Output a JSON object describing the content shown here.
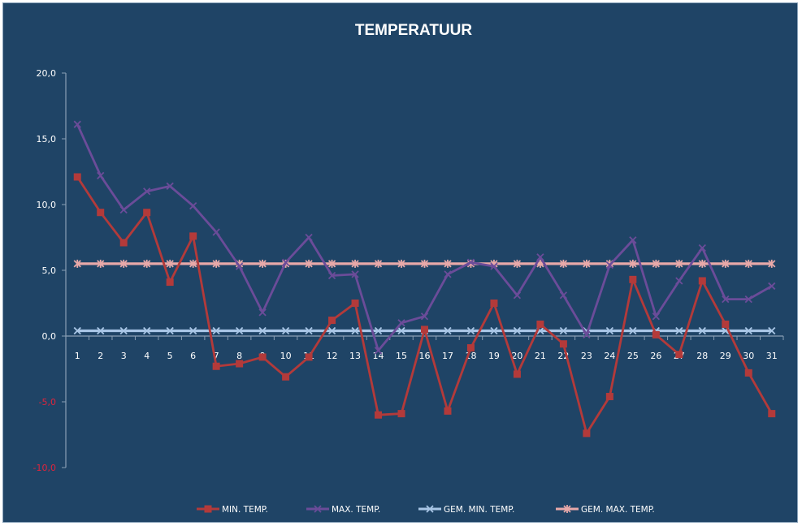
{
  "chart_data": {
    "type": "line",
    "title": "TEMPERATUUR",
    "xlabel": "",
    "ylabel": "",
    "ylim": [
      -10,
      20
    ],
    "y_ticks": [
      "20,0",
      "15,0",
      "10,0",
      "5,0",
      "0,0",
      "-5,0",
      "-10,0"
    ],
    "y_tick_values": [
      20,
      15,
      10,
      5,
      0,
      -5,
      -10
    ],
    "negative_tick_color": "#e0243c",
    "categories": [
      "1",
      "2",
      "3",
      "4",
      "5",
      "6",
      "7",
      "8",
      "9",
      "10",
      "11",
      "12",
      "13",
      "14",
      "15",
      "16",
      "17",
      "18",
      "19",
      "20",
      "21",
      "22",
      "23",
      "24",
      "25",
      "26",
      "27",
      "28",
      "29",
      "30",
      "31"
    ],
    "legend_position": "bottom",
    "grid": false,
    "background": "#1f4466",
    "series": [
      {
        "name": "MIN. TEMP.",
        "color": "#b33a3a",
        "marker": "square",
        "values": [
          12.1,
          9.4,
          7.1,
          9.4,
          4.1,
          7.6,
          -2.3,
          -2.1,
          -1.6,
          -3.1,
          -1.6,
          1.2,
          2.5,
          -6.0,
          -5.9,
          0.5,
          -5.7,
          -0.9,
          2.5,
          -2.9,
          0.9,
          -0.6,
          -7.4,
          -4.6,
          4.3,
          0.1,
          -1.4,
          4.2,
          0.9,
          -2.8,
          -5.9
        ]
      },
      {
        "name": "MAX. TEMP.",
        "color": "#6b4c99",
        "marker": "x",
        "values": [
          16.1,
          12.2,
          9.6,
          11.0,
          11.4,
          9.9,
          7.9,
          5.3,
          1.8,
          5.6,
          7.5,
          4.6,
          4.7,
          -1.1,
          1.0,
          1.5,
          4.7,
          5.6,
          5.3,
          3.1,
          6.0,
          3.1,
          0.1,
          5.4,
          7.3,
          1.5,
          4.2,
          6.7,
          2.8,
          2.8,
          3.8
        ]
      },
      {
        "name": "GEM. MIN. TEMP.",
        "color": "#a9c6e6",
        "marker": "x",
        "values": [
          0.4,
          0.4,
          0.4,
          0.4,
          0.4,
          0.4,
          0.4,
          0.4,
          0.4,
          0.4,
          0.4,
          0.4,
          0.4,
          0.4,
          0.4,
          0.4,
          0.4,
          0.4,
          0.4,
          0.4,
          0.4,
          0.4,
          0.4,
          0.4,
          0.4,
          0.4,
          0.4,
          0.4,
          0.4,
          0.4,
          0.4
        ]
      },
      {
        "name": "GEM. MAX. TEMP.",
        "color": "#e8a9a9",
        "marker": "star",
        "values": [
          5.5,
          5.5,
          5.5,
          5.5,
          5.5,
          5.5,
          5.5,
          5.5,
          5.5,
          5.5,
          5.5,
          5.5,
          5.5,
          5.5,
          5.5,
          5.5,
          5.5,
          5.5,
          5.5,
          5.5,
          5.5,
          5.5,
          5.5,
          5.5,
          5.5,
          5.5,
          5.5,
          5.5,
          5.5,
          5.5,
          5.5
        ]
      }
    ]
  }
}
